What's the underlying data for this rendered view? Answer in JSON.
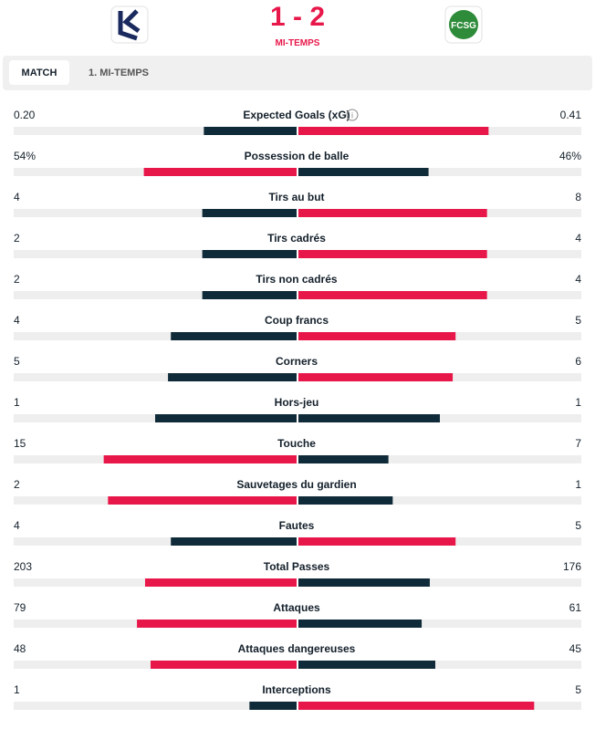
{
  "header": {
    "score": "1 - 2",
    "status": "MI-TEMPS"
  },
  "tabs": [
    "MATCH",
    "1. MI-TEMPS"
  ],
  "stats": [
    {
      "label": "Expected Goals (xG)",
      "home": {
        "value": 0.2,
        "label": "0.20"
      },
      "away": 0.41
    },
    {
      "label": "Possession de balle",
      "home": {
        "value": 54,
        "label": "54%"
      },
      "away": {
        "value": 46,
        "label": "46%"
      }
    },
    {
      "label": "Tirs au but",
      "home": 4,
      "away": 8
    },
    {
      "label": "Tirs cadrés",
      "home": 2,
      "away": 4
    },
    {
      "label": "Tirs non cadrés",
      "home": 2,
      "away": 4
    },
    {
      "label": "Coup francs",
      "home": 4,
      "away": 5
    },
    {
      "label": "Corners",
      "home": 5,
      "away": 6
    },
    {
      "label": "Hors-jeu",
      "home": 1,
      "away": 1
    },
    {
      "label": "Touche",
      "home": 15,
      "away": 7
    },
    {
      "label": "Sauvetages du gardien",
      "home": 2,
      "away": 1
    },
    {
      "label": "Fautes",
      "home": 4,
      "away": 5
    },
    {
      "label": "Total Passes",
      "home": 203,
      "away": 176
    },
    {
      "label": "Attaques",
      "home": 79,
      "away": 61
    },
    {
      "label": "Attaques dangereuses",
      "home": 48,
      "away": 45
    },
    {
      "label": "Interceptions",
      "home": 1,
      "away": 5
    }
  ]
}
